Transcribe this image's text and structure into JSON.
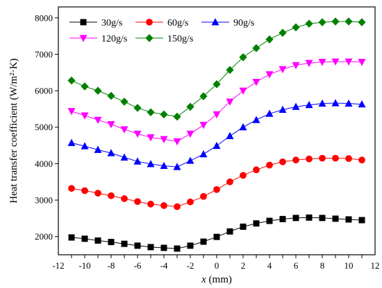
{
  "chart_data": {
    "type": "line",
    "xlabel_var": "x",
    "xlabel_unit": " (mm)",
    "ylabel": "Heat transfer coefficient (W/m²·K)",
    "xlim": [
      -12,
      12
    ],
    "ylim": [
      1500,
      8300
    ],
    "xticks": [
      -11,
      -10,
      -9,
      -8,
      -7,
      -6,
      -5,
      -4,
      -3,
      -2,
      -1,
      0,
      1,
      2,
      3,
      4,
      5,
      6,
      7,
      8,
      9,
      10,
      11
    ],
    "xtick_labels": [
      "-12",
      "-10",
      "-8",
      "-6",
      "-4",
      "-2",
      "0",
      "2",
      "4",
      "6",
      "8",
      "10",
      "12"
    ],
    "xtick_label_values": [
      -12,
      -10,
      -8,
      -6,
      -4,
      -2,
      0,
      2,
      4,
      6,
      8,
      10,
      12
    ],
    "yticks": [
      2000,
      3000,
      4000,
      5000,
      6000,
      7000,
      8000
    ],
    "ytick_labels": [
      "2000",
      "3000",
      "4000",
      "5000",
      "6000",
      "7000",
      "8000"
    ],
    "grid": false,
    "legend_position": "top-left",
    "x": [
      -11,
      -10,
      -9,
      -8,
      -7,
      -6,
      -5,
      -4,
      -3,
      -2,
      -1,
      0,
      1,
      2,
      3,
      4,
      5,
      6,
      7,
      8,
      9,
      10,
      11
    ],
    "series": [
      {
        "name": "30g/s",
        "color": "#000000",
        "marker": "square",
        "values": [
          1975,
          1940,
          1890,
          1850,
          1800,
          1750,
          1710,
          1690,
          1670,
          1750,
          1860,
          1990,
          2140,
          2270,
          2360,
          2430,
          2480,
          2510,
          2520,
          2510,
          2490,
          2470,
          2450
        ]
      },
      {
        "name": "60g/s",
        "color": "#ff0000",
        "marker": "circle",
        "values": [
          3320,
          3260,
          3190,
          3120,
          3040,
          2960,
          2890,
          2850,
          2820,
          2950,
          3100,
          3290,
          3500,
          3680,
          3830,
          3960,
          4050,
          4100,
          4130,
          4150,
          4150,
          4140,
          4100
        ]
      },
      {
        "name": "90g/s",
        "color": "#0000ff",
        "marker": "triangle-up",
        "values": [
          4570,
          4480,
          4380,
          4290,
          4170,
          4060,
          3990,
          3940,
          3910,
          4080,
          4260,
          4490,
          4760,
          5000,
          5200,
          5370,
          5480,
          5560,
          5610,
          5650,
          5660,
          5650,
          5630
        ]
      },
      {
        "name": "120g/s",
        "color": "#ff00ff",
        "marker": "triangle-down",
        "values": [
          5440,
          5320,
          5200,
          5080,
          4940,
          4820,
          4720,
          4670,
          4610,
          4820,
          5060,
          5350,
          5700,
          6000,
          6240,
          6450,
          6590,
          6700,
          6760,
          6790,
          6800,
          6800,
          6790
        ]
      },
      {
        "name": "150g/s",
        "color": "#008000",
        "marker": "diamond",
        "values": [
          6280,
          6120,
          6000,
          5860,
          5700,
          5530,
          5410,
          5350,
          5290,
          5560,
          5850,
          6180,
          6570,
          6920,
          7170,
          7410,
          7590,
          7740,
          7840,
          7880,
          7900,
          7900,
          7880
        ]
      }
    ]
  }
}
